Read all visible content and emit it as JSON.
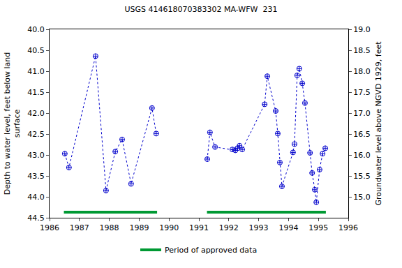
{
  "chart_data": {
    "type": "scatter",
    "title": "USGS 414618070383302 MA-WFW  231",
    "y_label": [
      "Depth to water level, feet below land",
      "surface"
    ],
    "y2_label": [
      "Groundwater level above NGVD 1929, feet"
    ],
    "xlim": [
      1986,
      1996
    ],
    "xticks": [
      1986,
      1987,
      1988,
      1989,
      1990,
      1991,
      1992,
      1993,
      1994,
      1995,
      1996
    ],
    "ylim": [
      44.5,
      40.0
    ],
    "yticks": [
      {
        "value": 40.0,
        "label": "40.0"
      },
      {
        "value": 40.5,
        "label": "40.5"
      },
      {
        "value": 41.0,
        "label": "41.0"
      },
      {
        "value": 41.5,
        "label": "41.5"
      },
      {
        "value": 42.0,
        "label": "42.0"
      },
      {
        "value": 42.5,
        "label": "42.5"
      },
      {
        "value": 43.0,
        "label": "43.0"
      },
      {
        "value": 43.5,
        "label": "43.5"
      },
      {
        "value": 44.0,
        "label": "44.0"
      },
      {
        "value": 44.5,
        "label": "44.5"
      }
    ],
    "y2lim": [
      14.5,
      19.0
    ],
    "y2ticks": [
      {
        "value": 15.0,
        "label": "15.0"
      },
      {
        "value": 15.5,
        "label": "15.5"
      },
      {
        "value": 16.0,
        "label": "16.0"
      },
      {
        "value": 16.5,
        "label": "16.5"
      },
      {
        "value": 17.0,
        "label": "17.0"
      },
      {
        "value": 17.5,
        "label": "17.5"
      },
      {
        "value": 18.0,
        "label": "18.0"
      },
      {
        "value": 18.5,
        "label": "18.5"
      },
      {
        "value": 19.0,
        "label": "19.0"
      }
    ],
    "grid": false,
    "x": [
      1986.51,
      1986.65,
      1987.54,
      1987.89,
      1988.2,
      1988.43,
      1988.73,
      1989.43,
      1989.57,
      null,
      1991.28,
      1991.37,
      1991.54,
      1992.12,
      1992.22,
      1992.29,
      1992.36,
      1992.45,
      1993.2,
      1993.29,
      1993.57,
      1993.64,
      1993.71,
      1993.78,
      1994.15,
      1994.2,
      1994.29,
      1994.36,
      1994.46,
      1994.55,
      1994.72,
      1994.79,
      1994.88,
      1994.93,
      1995.04,
      1995.14,
      1995.23
    ],
    "series": [
      {
        "color": "#0000cc",
        "marker": "circle-cross-open",
        "line_style": "dot",
        "values": [
          42.97,
          43.3,
          40.64,
          43.85,
          42.92,
          42.63,
          43.69,
          41.88,
          42.49,
          null,
          43.1,
          42.46,
          42.81,
          42.87,
          42.89,
          42.84,
          42.78,
          42.87,
          41.79,
          41.12,
          41.95,
          42.49,
          43.18,
          43.75,
          42.94,
          42.74,
          41.1,
          40.94,
          41.29,
          41.76,
          42.95,
          43.43,
          43.83,
          44.13,
          43.35,
          42.97,
          42.84
        ]
      }
    ],
    "approved_periods": {
      "name": "Period of approved data",
      "color": "#009933",
      "ranges": [
        [
          1986.48,
          1989.6
        ],
        [
          1991.27,
          1995.25
        ]
      ]
    },
    "legend": "bottom"
  }
}
